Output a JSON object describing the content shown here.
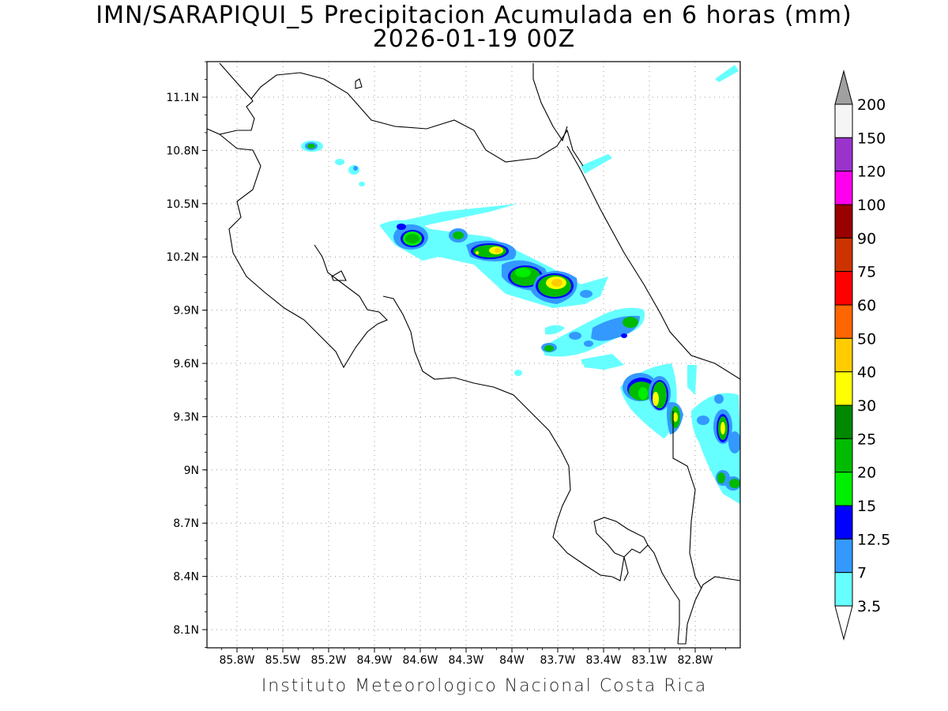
{
  "title": "IMN/SARAPIQUI_5 Precipitacion Acumulada en 6 horas (mm)",
  "subtitle": "2026-01-19 00Z",
  "footer": "Instituto Meteorologico Nacional Costa Rica",
  "map": {
    "lat_range": [
      8.0,
      11.3
    ],
    "lon_range": [
      -86.0,
      -83.0
    ],
    "y_ticks": [
      {
        "label": "11.1N",
        "value": 11.1
      },
      {
        "label": "10.8N",
        "value": 10.8
      },
      {
        "label": "10.5N",
        "value": 10.5
      },
      {
        "label": "10.2N",
        "value": 10.2
      },
      {
        "label": "9.9N",
        "value": 9.9
      },
      {
        "label": "9.6N",
        "value": 9.6
      },
      {
        "label": "9.3N",
        "value": 9.3
      },
      {
        "label": "9N",
        "value": 9.0
      },
      {
        "label": "8.7N",
        "value": 8.7
      },
      {
        "label": "8.4N",
        "value": 8.4
      },
      {
        "label": "8.1N",
        "value": 8.1
      }
    ],
    "x_ticks": [
      {
        "label": "85.8W",
        "value": -85.8
      },
      {
        "label": "85.5W",
        "value": -85.5
      },
      {
        "label": "85.2W",
        "value": -85.2
      },
      {
        "label": "84.9W",
        "value": -84.9
      },
      {
        "label": "84.6W",
        "value": -84.6
      },
      {
        "label": "84.3W",
        "value": -84.3
      },
      {
        "label": "84W",
        "value": -84.0
      },
      {
        "label": "83.7W",
        "value": -83.7
      },
      {
        "label": "83.4W",
        "value": -83.4
      },
      {
        "label": "83.1W",
        "value": -83.1
      },
      {
        "label": "82.8W",
        "value": -82.8
      }
    ],
    "grid": "dotted"
  },
  "colorbar": {
    "levels": [
      {
        "label": "200",
        "color": "#a0a0a0"
      },
      {
        "label": "150",
        "color": "#f5f5f5"
      },
      {
        "label": "120",
        "color": "#9933cc"
      },
      {
        "label": "100",
        "color": "#ff00ee"
      },
      {
        "label": "90",
        "color": "#990000"
      },
      {
        "label": "75",
        "color": "#cc3300"
      },
      {
        "label": "60",
        "color": "#ff0000"
      },
      {
        "label": "50",
        "color": "#ff6600"
      },
      {
        "label": "40",
        "color": "#ffcc00"
      },
      {
        "label": "30",
        "color": "#ffff00"
      },
      {
        "label": "25",
        "color": "#008800"
      },
      {
        "label": "20",
        "color": "#00bb00"
      },
      {
        "label": "15",
        "color": "#00ee00"
      },
      {
        "label": "12.5",
        "color": "#0000ff"
      },
      {
        "label": "7",
        "color": "#3399ff"
      },
      {
        "label": "3.5",
        "color": "#66ffff"
      }
    ]
  },
  "precip_colors": {
    "cyan": "#66ffff",
    "light_blue": "#3399ff",
    "blue": "#0000ff",
    "light_green": "#00ee00",
    "green": "#00bb00",
    "dark_green": "#008800",
    "yellow": "#ffff00",
    "orange": "#ffcc00"
  }
}
